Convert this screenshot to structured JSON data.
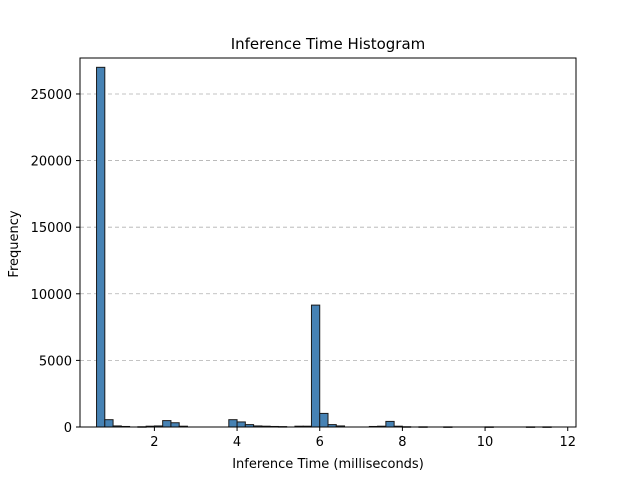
{
  "chart_data": {
    "type": "bar",
    "title": "Inference Time Histogram",
    "xlabel": "Inference Time (milliseconds)",
    "ylabel": "Frequency",
    "xlim": [
      0.2,
      12.2
    ],
    "ylim": [
      0,
      27700
    ],
    "x_ticks": [
      2,
      4,
      6,
      8,
      10,
      12
    ],
    "y_ticks": [
      0,
      5000,
      10000,
      15000,
      20000,
      25000
    ],
    "grid": "y-dashed",
    "bar_color": "#4682b4",
    "bin_width": 0.2,
    "bins": [
      {
        "x": 0.6,
        "value": 27000
      },
      {
        "x": 0.8,
        "value": 550
      },
      {
        "x": 1.0,
        "value": 80
      },
      {
        "x": 1.2,
        "value": 40
      },
      {
        "x": 1.6,
        "value": 20
      },
      {
        "x": 1.8,
        "value": 60
      },
      {
        "x": 2.0,
        "value": 80
      },
      {
        "x": 2.2,
        "value": 480
      },
      {
        "x": 2.4,
        "value": 320
      },
      {
        "x": 2.6,
        "value": 60
      },
      {
        "x": 3.8,
        "value": 550
      },
      {
        "x": 4.0,
        "value": 380
      },
      {
        "x": 4.2,
        "value": 180
      },
      {
        "x": 4.4,
        "value": 80
      },
      {
        "x": 4.6,
        "value": 60
      },
      {
        "x": 4.8,
        "value": 40
      },
      {
        "x": 5.0,
        "value": 30
      },
      {
        "x": 5.4,
        "value": 60
      },
      {
        "x": 5.6,
        "value": 60
      },
      {
        "x": 5.8,
        "value": 9150
      },
      {
        "x": 6.0,
        "value": 1020
      },
      {
        "x": 6.2,
        "value": 180
      },
      {
        "x": 6.4,
        "value": 80
      },
      {
        "x": 7.2,
        "value": 40
      },
      {
        "x": 7.4,
        "value": 60
      },
      {
        "x": 7.6,
        "value": 420
      },
      {
        "x": 7.8,
        "value": 60
      },
      {
        "x": 8.0,
        "value": 20
      },
      {
        "x": 8.4,
        "value": 15
      },
      {
        "x": 9.0,
        "value": 10
      },
      {
        "x": 10.0,
        "value": 10
      },
      {
        "x": 11.0,
        "value": 10
      },
      {
        "x": 11.4,
        "value": 10
      }
    ]
  }
}
